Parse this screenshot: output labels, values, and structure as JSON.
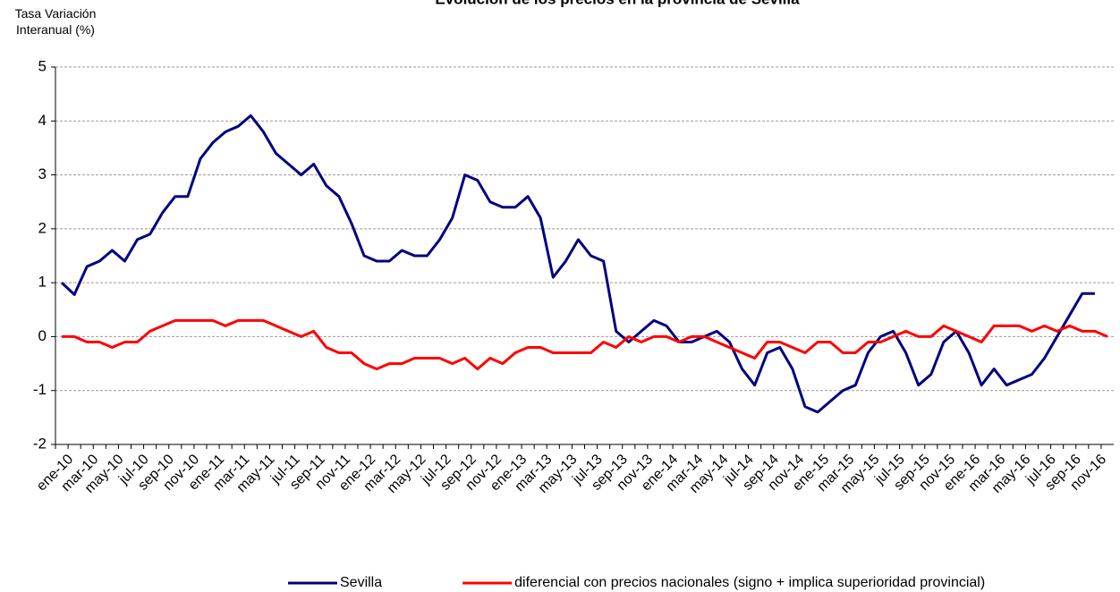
{
  "chart_data": {
    "type": "line",
    "title": "Evolución de los precios en la provincia de Sevilla",
    "y_label": [
      "Tasa Variación",
      "Interanual (%)"
    ],
    "categories": [
      "ene-10",
      null,
      "mar-10",
      null,
      "may-10",
      null,
      "jul-10",
      null,
      "sep-10",
      null,
      "nov-10",
      null,
      "ene-11",
      null,
      "mar-11",
      null,
      "may-11",
      null,
      "jul-11",
      null,
      "sep-11",
      null,
      "nov-11",
      null,
      "ene-12",
      null,
      "mar-12",
      null,
      "may-12",
      null,
      "jul-12",
      null,
      "sep-12",
      null,
      "nov-12",
      null,
      "ene-13",
      null,
      "mar-13",
      null,
      "may-13",
      null,
      "jul-13",
      null,
      "sep-13",
      null,
      "nov-13",
      null,
      "ene-14",
      null,
      "mar-14",
      null,
      "may-14",
      null,
      "jul-14",
      null,
      "sep-14",
      null,
      "nov-14",
      null,
      "ene-15",
      null,
      "mar-15",
      null,
      "may-15",
      null,
      "jul-15",
      null,
      "sep-15",
      null,
      "nov-15",
      null,
      "ene-16",
      null,
      "mar-16",
      null,
      "may-16",
      null,
      "jul-16",
      null,
      "sep-16",
      null,
      "nov-16",
      null
    ],
    "series": [
      {
        "name": "Sevilla",
        "color": "#000080",
        "values": [
          1.0,
          0.78,
          1.3,
          1.4,
          1.6,
          1.4,
          1.8,
          1.9,
          2.3,
          2.6,
          2.6,
          3.3,
          3.6,
          3.8,
          3.9,
          4.1,
          3.8,
          3.4,
          3.2,
          3.0,
          3.2,
          2.8,
          2.6,
          2.1,
          1.5,
          1.4,
          1.4,
          1.6,
          1.5,
          1.5,
          1.8,
          2.2,
          3.0,
          2.9,
          2.5,
          2.4,
          2.4,
          2.6,
          2.2,
          1.1,
          1.4,
          1.8,
          1.5,
          1.4,
          0.1,
          -0.1,
          0.1,
          0.3,
          0.2,
          -0.1,
          -0.1,
          0.0,
          0.1,
          -0.1,
          -0.6,
          -0.9,
          -0.3,
          -0.2,
          -0.6,
          -1.3,
          -1.4,
          -1.2,
          -1.0,
          -0.9,
          -0.3,
          0.0,
          0.1,
          -0.3,
          -0.9,
          -0.7,
          -0.1,
          0.1,
          -0.3,
          -0.9,
          -0.6,
          -0.9,
          -0.8,
          -0.7,
          -0.4,
          0.0,
          0.4,
          0.8,
          0.8,
          null
        ]
      },
      {
        "name": "diferencial con precios nacionales (signo + implica superioridad provincial)",
        "color": "#ff0000",
        "values": [
          0,
          0,
          -0.1,
          -0.1,
          -0.2,
          -0.1,
          -0.1,
          0.1,
          0.2,
          0.3,
          0.3,
          0.3,
          0.3,
          0.2,
          0.3,
          0.3,
          0.3,
          0.2,
          0.1,
          0.0,
          0.1,
          -0.2,
          -0.3,
          -0.3,
          -0.5,
          -0.6,
          -0.5,
          -0.5,
          -0.4,
          -0.4,
          -0.4,
          -0.5,
          -0.4,
          -0.6,
          -0.4,
          -0.5,
          -0.3,
          -0.2,
          -0.2,
          -0.3,
          -0.3,
          -0.3,
          -0.3,
          -0.1,
          -0.2,
          0.0,
          -0.1,
          0.0,
          0.0,
          -0.1,
          0.0,
          0.0,
          -0.1,
          -0.2,
          -0.3,
          -0.4,
          -0.1,
          -0.1,
          -0.2,
          -0.3,
          -0.1,
          -0.1,
          -0.3,
          -0.3,
          -0.1,
          -0.1,
          0.0,
          0.1,
          0.0,
          0.0,
          0.2,
          0.1,
          0.0,
          -0.1,
          0.2,
          0.2,
          0.2,
          0.1,
          0.2,
          0.1,
          0.2,
          0.1,
          0.1,
          0.0
        ]
      }
    ],
    "ylim": [
      -2,
      5
    ],
    "yticks": [
      -2,
      -1,
      0,
      1,
      2,
      3,
      4,
      5
    ],
    "grid": true,
    "legend": "bottom"
  }
}
